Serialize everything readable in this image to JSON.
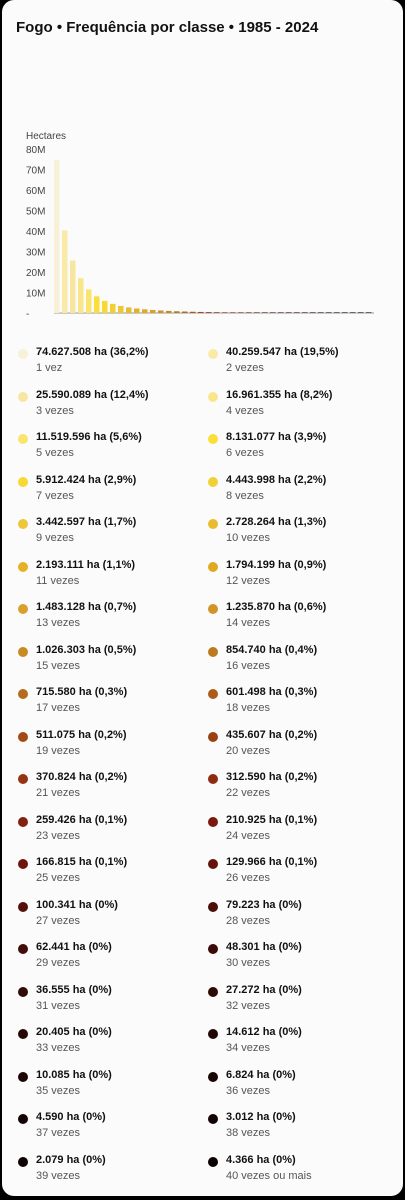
{
  "title": "Fogo • Frequência por classe • 1985 - 2024",
  "chart_data": {
    "type": "bar",
    "ylabel": "Hectares",
    "ylim": [
      0,
      80000000
    ],
    "yticks": [
      "80M",
      "70M",
      "60M",
      "50M",
      "40M",
      "30M",
      "20M",
      "10M",
      "-"
    ],
    "categories": [
      "1 vez",
      "2 vezes",
      "3 vezes",
      "4 vezes",
      "5 vezes",
      "6 vezes",
      "7 vezes",
      "8 vezes",
      "9 vezes",
      "10 vezes",
      "11 vezes",
      "12 vezes",
      "13 vezes",
      "14 vezes",
      "15 vezes",
      "16 vezes",
      "17 vezes",
      "18 vezes",
      "19 vezes",
      "20 vezes",
      "21 vezes",
      "22 vezes",
      "23 vezes",
      "24 vezes",
      "25 vezes",
      "26 vezes",
      "27 vezes",
      "28 vezes",
      "29 vezes",
      "30 vezes",
      "31 vezes",
      "32 vezes",
      "33 vezes",
      "34 vezes",
      "35 vezes",
      "36 vezes",
      "37 vezes",
      "38 vezes",
      "39 vezes",
      "40 vezes ou mais"
    ],
    "values": [
      74627508,
      40259547,
      25590089,
      16961355,
      11519596,
      8131077,
      5912424,
      4443998,
      3442597,
      2728264,
      2193111,
      1794199,
      1483128,
      1235870,
      1026303,
      854740,
      715580,
      601498,
      511075,
      435607,
      370824,
      312590,
      259426,
      210925,
      166815,
      129966,
      100341,
      79223,
      62441,
      48301,
      36555,
      27272,
      20405,
      14612,
      10085,
      6824,
      4590,
      3012,
      2079,
      4366
    ],
    "labels": [
      "74.627.508 ha (36,2%)",
      "40.259.547 ha (19,5%)",
      "25.590.089 ha (12,4%)",
      "16.961.355 ha (8,2%)",
      "11.519.596 ha (5,6%)",
      "8.131.077 ha (3,9%)",
      "5.912.424 ha (2,9%)",
      "4.443.998 ha (2,2%)",
      "3.442.597 ha (1,7%)",
      "2.728.264 ha (1,3%)",
      "2.193.111 ha (1,1%)",
      "1.794.199 ha (0,9%)",
      "1.483.128 ha (0,7%)",
      "1.235.870 ha (0,6%)",
      "1.026.303 ha (0,5%)",
      "854.740 ha (0,4%)",
      "715.580 ha (0,3%)",
      "601.498 ha (0,3%)",
      "511.075 ha (0,2%)",
      "435.607 ha (0,2%)",
      "370.824 ha (0,2%)",
      "312.590 ha (0,2%)",
      "259.426 ha (0,1%)",
      "210.925 ha (0,1%)",
      "166.815 ha (0,1%)",
      "129.966 ha (0,1%)",
      "100.341 ha (0%)",
      "79.223 ha (0%)",
      "62.441 ha (0%)",
      "48.301 ha (0%)",
      "36.555 ha (0%)",
      "27.272 ha (0%)",
      "20.405 ha (0%)",
      "14.612 ha (0%)",
      "10.085 ha (0%)",
      "6.824 ha (0%)",
      "4.590 ha (0%)",
      "3.012 ha (0%)",
      "2.079 ha (0%)",
      "4.366 ha (0%)"
    ],
    "colors": [
      "#f7f1d8",
      "#f9eaa8",
      "#f7e6a0",
      "#f9e68a",
      "#f9e46e",
      "#fade3a",
      "#f8d833",
      "#f3cf36",
      "#eec63a",
      "#e9bc30",
      "#e5b226",
      "#e0a922",
      "#d9a12a",
      "#d09428",
      "#c88a22",
      "#bb7a20",
      "#b56a1c",
      "#ac5c18",
      "#a24c14",
      "#9a4012",
      "#953312",
      "#8f2b10",
      "#83200f",
      "#7b190e",
      "#6f140d",
      "#66120c",
      "#55100a",
      "#4c0e09",
      "#420c08",
      "#3a0b07",
      "#320b06",
      "#2d0a05",
      "#260804",
      "#220704",
      "#1d0603",
      "#190503",
      "#150403",
      "#110303",
      "#0e0202",
      "#0a0101"
    ],
    "grid": false,
    "legend_position": "bottom"
  }
}
